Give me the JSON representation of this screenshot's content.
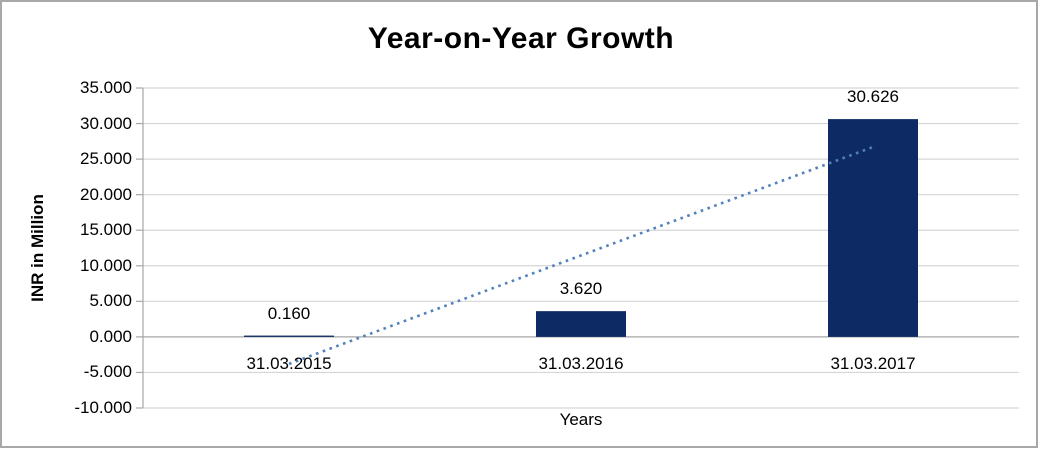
{
  "window": {
    "background": "#ffffff",
    "border_color": "#a8a8a8"
  },
  "chart_data": {
    "type": "bar",
    "title": "Year-on-Year Growth",
    "xlabel": "Years",
    "ylabel": "INR in Million",
    "categories": [
      "31.03.2015",
      "31.03.2016",
      "31.03.2017"
    ],
    "values": [
      0.16,
      3.62,
      30.626
    ],
    "value_labels": [
      "0.160",
      "3.620",
      "30.626"
    ],
    "ylim": [
      -10,
      35
    ],
    "ytick_step": 5,
    "ytick_labels": [
      "35.000",
      "30.000",
      "25.000",
      "20.000",
      "15.000",
      "10.000",
      "5.000",
      "0.000",
      "-5.000",
      "-10.000"
    ],
    "grid": true,
    "legend": "none",
    "bar_color": "#0e2a64",
    "gridline_color": "#d6d6d6",
    "axis_line_color": "#a6a6a6",
    "text_color": "#000000",
    "trendline": {
      "type": "linear",
      "style": "dotted",
      "color": "#4f81bd",
      "value_at_first_category": -3.8,
      "value_at_last_category": 26.7
    }
  }
}
